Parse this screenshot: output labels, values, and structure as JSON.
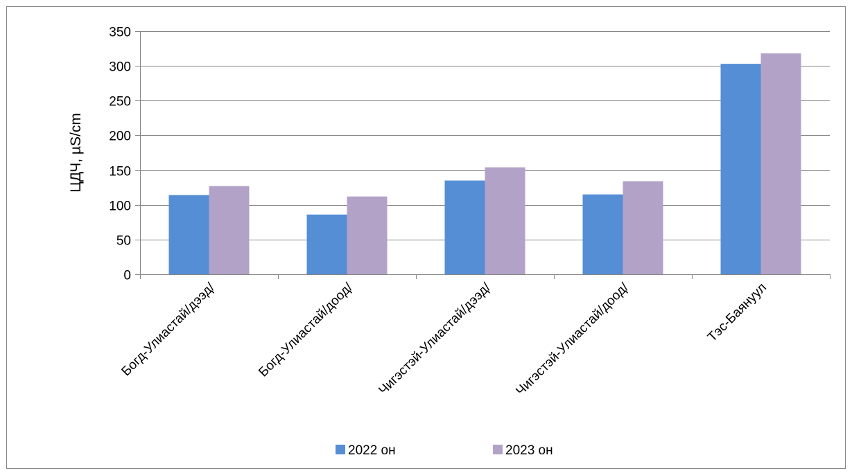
{
  "chart_data": {
    "type": "bar",
    "title": "",
    "xlabel": "",
    "ylabel": "ЦДЧ, µS/cm",
    "ylim": [
      0,
      350
    ],
    "yticks": [
      0,
      50,
      100,
      150,
      200,
      250,
      300,
      350
    ],
    "grid": true,
    "legend_position": "bottom",
    "categories": [
      "Богд-Улиастай/дээд/",
      "Богд-Улиастай/доод/",
      "Чигэстэй-Улиастай/дээд/",
      "Чигэстэй-Улиастай/доод/",
      "Тэс-Баянуул"
    ],
    "series": [
      {
        "name": "2022 он",
        "color": "#558ED5",
        "values": [
          114,
          86,
          135,
          115,
          303
        ]
      },
      {
        "name": "2023 он",
        "color": "#B3A2C7",
        "values": [
          127,
          112,
          154,
          134,
          318
        ]
      }
    ]
  }
}
